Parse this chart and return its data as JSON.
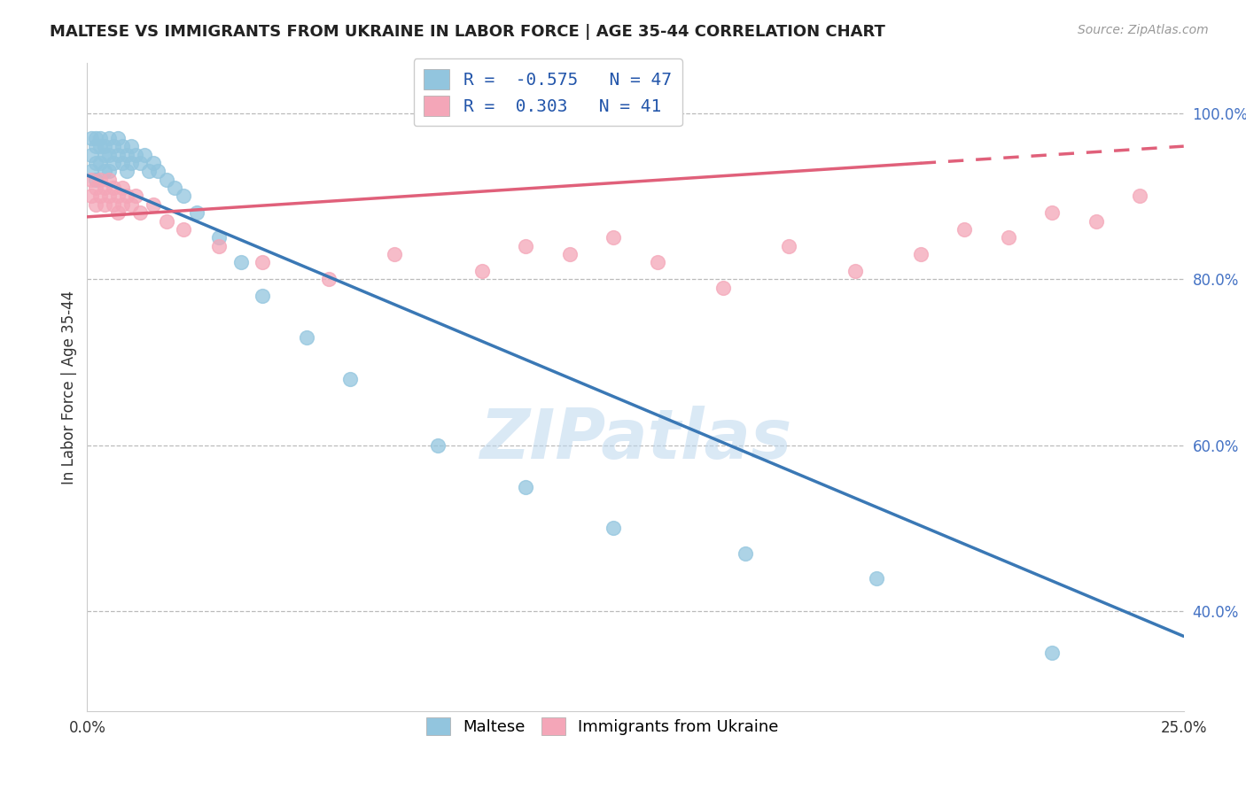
{
  "title": "MALTESE VS IMMIGRANTS FROM UKRAINE IN LABOR FORCE | AGE 35-44 CORRELATION CHART",
  "source": "Source: ZipAtlas.com",
  "ylabel": "In Labor Force | Age 35-44",
  "xlim": [
    0.0,
    0.25
  ],
  "ylim": [
    0.28,
    1.06
  ],
  "maltese_R": -0.575,
  "maltese_N": 47,
  "ukraine_R": 0.303,
  "ukraine_N": 41,
  "maltese_color": "#92c5de",
  "ukraine_color": "#f4a6b8",
  "maltese_line_color": "#3a78b5",
  "ukraine_line_color": "#e0607a",
  "maltese_x": [
    0.001,
    0.001,
    0.001,
    0.002,
    0.002,
    0.002,
    0.002,
    0.003,
    0.003,
    0.003,
    0.004,
    0.004,
    0.004,
    0.005,
    0.005,
    0.005,
    0.006,
    0.006,
    0.007,
    0.007,
    0.008,
    0.008,
    0.009,
    0.009,
    0.01,
    0.01,
    0.011,
    0.012,
    0.013,
    0.014,
    0.015,
    0.016,
    0.018,
    0.02,
    0.022,
    0.025,
    0.03,
    0.035,
    0.04,
    0.05,
    0.06,
    0.08,
    0.1,
    0.12,
    0.15,
    0.18,
    0.22
  ],
  "maltese_y": [
    0.97,
    0.95,
    0.93,
    0.97,
    0.96,
    0.94,
    0.92,
    0.97,
    0.96,
    0.94,
    0.96,
    0.95,
    0.93,
    0.97,
    0.95,
    0.93,
    0.96,
    0.94,
    0.97,
    0.95,
    0.96,
    0.94,
    0.95,
    0.93,
    0.96,
    0.94,
    0.95,
    0.94,
    0.95,
    0.93,
    0.94,
    0.93,
    0.92,
    0.91,
    0.9,
    0.88,
    0.85,
    0.82,
    0.78,
    0.73,
    0.68,
    0.6,
    0.55,
    0.5,
    0.47,
    0.44,
    0.35
  ],
  "ukraine_x": [
    0.001,
    0.001,
    0.002,
    0.002,
    0.003,
    0.003,
    0.004,
    0.004,
    0.005,
    0.005,
    0.006,
    0.006,
    0.007,
    0.007,
    0.008,
    0.008,
    0.009,
    0.01,
    0.011,
    0.012,
    0.015,
    0.018,
    0.022,
    0.03,
    0.04,
    0.055,
    0.07,
    0.09,
    0.1,
    0.11,
    0.12,
    0.13,
    0.145,
    0.16,
    0.175,
    0.19,
    0.2,
    0.21,
    0.22,
    0.23,
    0.24
  ],
  "ukraine_y": [
    0.92,
    0.9,
    0.91,
    0.89,
    0.92,
    0.9,
    0.91,
    0.89,
    0.92,
    0.9,
    0.91,
    0.89,
    0.9,
    0.88,
    0.91,
    0.89,
    0.9,
    0.89,
    0.9,
    0.88,
    0.89,
    0.87,
    0.86,
    0.84,
    0.82,
    0.8,
    0.83,
    0.81,
    0.84,
    0.83,
    0.85,
    0.82,
    0.79,
    0.84,
    0.81,
    0.83,
    0.86,
    0.85,
    0.88,
    0.87,
    0.9
  ],
  "watermark": "ZIPatlas",
  "background_color": "#ffffff",
  "grid_color": "#bbbbbb",
  "yticks": [
    0.4,
    0.6,
    0.8,
    1.0
  ],
  "ytick_labels": [
    "40.0%",
    "60.0%",
    "80.0%",
    "100.0%"
  ],
  "xticks": [
    0.0,
    0.25
  ],
  "xtick_labels": [
    "0.0%",
    "25.0%"
  ]
}
